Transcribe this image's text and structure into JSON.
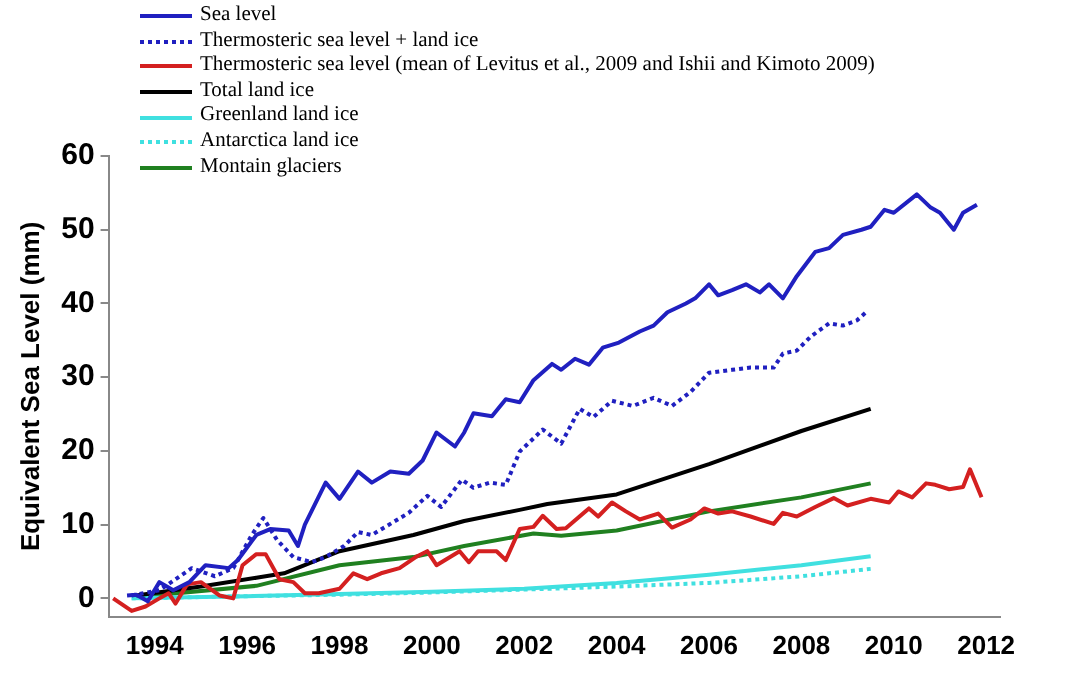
{
  "chart_data": {
    "type": "line",
    "ylabel": "Equivalent Sea Level (mm)",
    "xlim": [
      1993,
      2012.3
    ],
    "xticks": [
      1994,
      1996,
      1998,
      2000,
      2002,
      2004,
      2006,
      2008,
      2010,
      2012
    ],
    "ylim": [
      -2.5,
      60
    ],
    "yticks": [
      0,
      10,
      20,
      30,
      40,
      50,
      60
    ],
    "grid": false,
    "legend": "top left",
    "marker": "none",
    "series": [
      {
        "name": "Sea level",
        "color": "#2020c0",
        "line_style": "solid",
        "x": [
          1993.4,
          1993.6,
          1993.85,
          1994.1,
          1994.4,
          1994.75,
          1995.1,
          1995.6,
          1995.8,
          1996.2,
          1996.5,
          1996.9,
          1997.1,
          1997.25,
          1997.7,
          1998.0,
          1998.4,
          1998.7,
          1999.1,
          1999.5,
          1999.8,
          2000.1,
          2000.5,
          2000.7,
          2000.9,
          2001.3,
          2001.6,
          2001.9,
          2002.2,
          2002.6,
          2002.8,
          2003.1,
          2003.4,
          2003.7,
          2004.05,
          2004.5,
          2004.8,
          2005.1,
          2005.5,
          2005.7,
          2006.0,
          2006.2,
          2006.5,
          2006.8,
          2007.1,
          2007.3,
          2007.6,
          2007.9,
          2008.3,
          2008.6,
          2008.9,
          2009.3,
          2009.5,
          2009.8,
          2010.0,
          2010.5,
          2010.8,
          2011.0,
          2011.3,
          2011.5,
          2011.8
        ],
        "values": [
          0.4,
          0.5,
          -0.4,
          2.2,
          1.1,
          2.2,
          4.5,
          4.1,
          5.2,
          8.6,
          9.4,
          9.2,
          7.1,
          10,
          15.7,
          13.5,
          17.2,
          15.7,
          17.2,
          16.9,
          18.7,
          22.5,
          20.6,
          22.5,
          25.1,
          24.7,
          27,
          26.6,
          29.6,
          31.8,
          31,
          32.5,
          31.7,
          34,
          34.7,
          36.2,
          37,
          38.8,
          40,
          40.7,
          42.6,
          41.1,
          41.8,
          42.6,
          41.5,
          42.6,
          40.7,
          43.7,
          47,
          47.5,
          49.3,
          50,
          50.4,
          52.7,
          52.3,
          54.8,
          53,
          52.3,
          50,
          52.3,
          53.4
        ]
      },
      {
        "name": "Thermosteric sea level + land ice",
        "color": "#2020c0",
        "line_style": "dotted",
        "x": [
          1993.5,
          1994.1,
          1994.45,
          1994.8,
          1995.3,
          1995.7,
          1996.1,
          1996.35,
          1996.65,
          1997.0,
          1997.4,
          1997.7,
          1998.1,
          1998.4,
          1998.7,
          1999.1,
          1999.5,
          1999.9,
          2000.2,
          2000.65,
          2000.9,
          2001.25,
          2001.6,
          2001.9,
          2002.4,
          2002.8,
          2003.2,
          2003.5,
          2003.9,
          2004.35,
          2004.8,
          2005.2,
          2005.6,
          2006.0,
          2006.5,
          2006.9,
          2007.4,
          2007.6,
          2007.9,
          2008.2,
          2008.6,
          2008.9,
          2009.2,
          2009.4
        ],
        "values": [
          0.4,
          1.1,
          2.6,
          4.1,
          3,
          4.1,
          8.6,
          10.9,
          7.9,
          5.6,
          4.9,
          5.6,
          7.1,
          9,
          8.6,
          10.1,
          11.6,
          13.9,
          12.4,
          16.1,
          15,
          15.7,
          15.4,
          19.9,
          22.9,
          21,
          25.7,
          24.6,
          26.8,
          26.1,
          27.2,
          26.1,
          28,
          30.6,
          31,
          31.3,
          31.3,
          33.2,
          33.6,
          35.5,
          37.3,
          37,
          37.7,
          38.8
        ]
      },
      {
        "name": "Thermosteric sea level (mean of Levitus et al., 2009 and Ishii and Kimoto 2009)",
        "color": "#d42020",
        "line_style": "solid",
        "x": [
          1993.1,
          1993.5,
          1993.8,
          1994.1,
          1994.3,
          1994.45,
          1994.7,
          1995.0,
          1995.4,
          1995.7,
          1995.9,
          1996.2,
          1996.4,
          1996.7,
          1997.0,
          1997.25,
          1997.55,
          1998.0,
          1998.3,
          1998.6,
          1998.9,
          1999.3,
          1999.65,
          1999.9,
          2000.1,
          2000.6,
          2000.8,
          2001.0,
          2001.4,
          2001.6,
          2001.9,
          2002.2,
          2002.4,
          2002.7,
          2002.9,
          2003.4,
          2003.6,
          2003.9,
          2004.2,
          2004.5,
          2004.9,
          2005.2,
          2005.6,
          2005.9,
          2006.2,
          2006.5,
          2006.9,
          2007.4,
          2007.6,
          2007.9,
          2008.3,
          2008.7,
          2009.0,
          2009.5,
          2009.9,
          2010.1,
          2010.4,
          2010.7,
          2010.9,
          2011.2,
          2011.5,
          2011.65,
          2011.9
        ],
        "values": [
          0,
          -1.7,
          -1.1,
          0,
          0.7,
          -0.7,
          1.9,
          2.2,
          0.4,
          0,
          4.5,
          6,
          6,
          2.6,
          2.2,
          0.7,
          0.7,
          1.3,
          3.4,
          2.6,
          3.4,
          4.1,
          5.6,
          6.4,
          4.5,
          6.4,
          4.9,
          6.4,
          6.4,
          5.2,
          9.4,
          9.7,
          11.2,
          9.4,
          9.5,
          12.2,
          11.1,
          13,
          11.8,
          10.7,
          11.5,
          9.6,
          10.7,
          12.2,
          11.5,
          11.8,
          11.1,
          10.1,
          11.6,
          11.1,
          12.4,
          13.6,
          12.6,
          13.5,
          13,
          14.5,
          13.7,
          15.6,
          15.4,
          14.8,
          15.1,
          17.5,
          13.7
        ]
      },
      {
        "name": "Total land ice",
        "color": "#000000",
        "line_style": "solid",
        "x": [
          1993.6,
          1995,
          1996.2,
          1996.8,
          1998,
          1999.6,
          2000.7,
          2001.9,
          2002.5,
          2004,
          2006,
          2008,
          2009.5
        ],
        "values": [
          0.4,
          1.6,
          2.8,
          3.4,
          6.4,
          8.6,
          10.5,
          12,
          12.8,
          14.1,
          18.2,
          22.7,
          25.7
        ]
      },
      {
        "name": "Greenland land ice",
        "color": "#40e0e0",
        "line_style": "solid",
        "x": [
          1993.5,
          1996,
          1998,
          2000,
          2002,
          2004,
          2006,
          2008,
          2009.5
        ],
        "values": [
          0,
          0.3,
          0.6,
          0.9,
          1.3,
          2.1,
          3.2,
          4.5,
          5.7
        ]
      },
      {
        "name": "Antarctica land ice",
        "color": "#40e0e0",
        "line_style": "dotted",
        "x": [
          1993.5,
          1996,
          1998,
          2000,
          2002,
          2004,
          2006,
          2008,
          2009.5
        ],
        "values": [
          0,
          0.3,
          0.5,
          0.8,
          1.2,
          1.6,
          2.1,
          3.0,
          4.0
        ]
      },
      {
        "name": "Montain glaciers",
        "color": "#208020",
        "line_style": "solid",
        "x": [
          1993.6,
          1996.2,
          1998,
          1999.6,
          2000.7,
          2002.2,
          2002.8,
          2004,
          2006,
          2008,
          2009.5
        ],
        "values": [
          0.2,
          1.7,
          4.5,
          5.6,
          7.1,
          8.8,
          8.5,
          9.2,
          11.8,
          13.7,
          15.6
        ]
      }
    ]
  }
}
